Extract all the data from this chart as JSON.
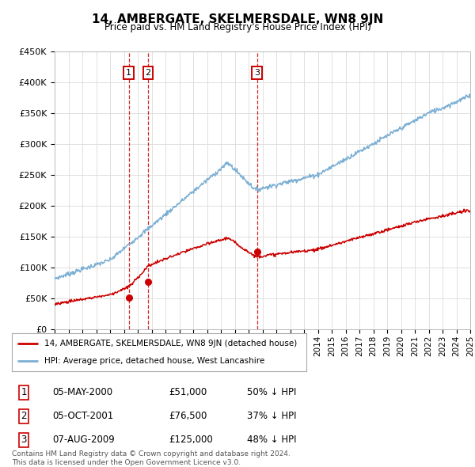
{
  "title": "14, AMBERGATE, SKELMERSDALE, WN8 9JN",
  "subtitle": "Price paid vs. HM Land Registry's House Price Index (HPI)",
  "ylim": [
    0,
    450000
  ],
  "yticks": [
    0,
    50000,
    100000,
    150000,
    200000,
    250000,
    300000,
    350000,
    400000,
    450000
  ],
  "ytick_labels": [
    "£0",
    "£50K",
    "£100K",
    "£150K",
    "£200K",
    "£250K",
    "£300K",
    "£350K",
    "£400K",
    "£450K"
  ],
  "x_start_year": 1995,
  "x_end_year": 2025,
  "sale_events": [
    {
      "num": "1",
      "year": 2000.35,
      "price": 51000,
      "date": "05-MAY-2000",
      "price_str": "£51,000",
      "pct": "50%",
      "dir": "↓"
    },
    {
      "num": "2",
      "year": 2001.75,
      "price": 76500,
      "date": "05-OCT-2001",
      "price_str": "£76,500",
      "pct": "37%",
      "dir": "↓"
    },
    {
      "num": "3",
      "year": 2009.6,
      "price": 125000,
      "date": "07-AUG-2009",
      "price_str": "£125,000",
      "pct": "48%",
      "dir": "↓"
    }
  ],
  "legend_line1": "14, AMBERGATE, SKELMERSDALE, WN8 9JN (detached house)",
  "legend_line2": "HPI: Average price, detached house, West Lancashire",
  "red_line_color": "#cc0000",
  "blue_line_color": "#7bafd4",
  "grid_color": "#e0e0e0",
  "footer_text": "Contains HM Land Registry data © Crown copyright and database right 2024.\nThis data is licensed under the Open Government Licence v3.0.",
  "background_color": "#ffffff"
}
